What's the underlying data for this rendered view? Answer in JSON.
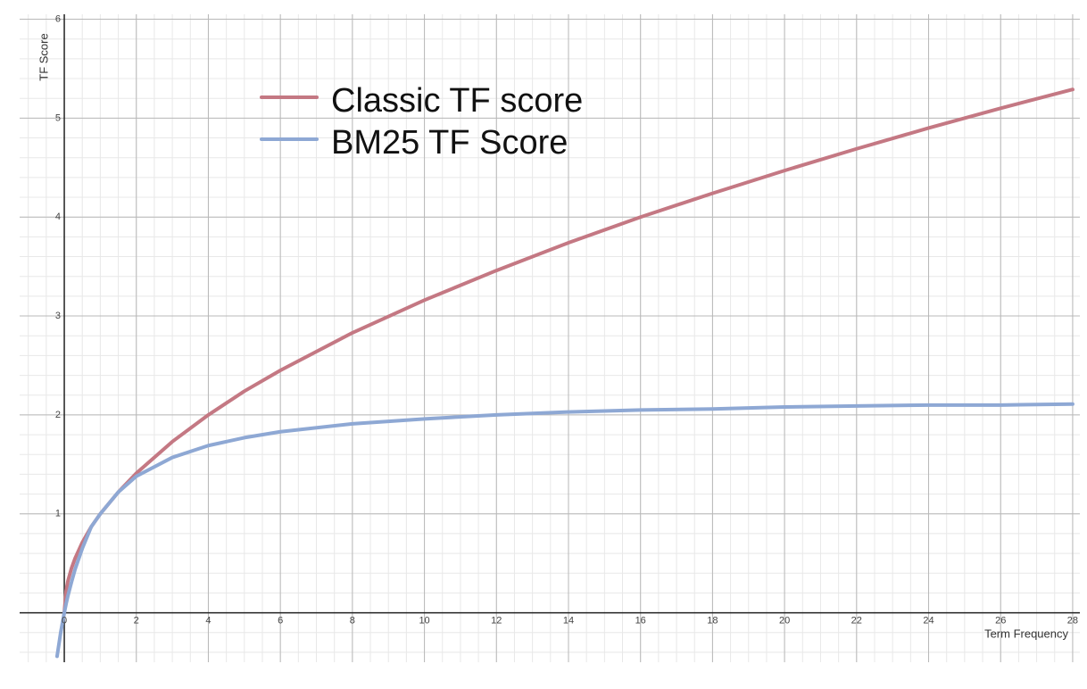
{
  "chart_data": {
    "type": "line",
    "x_label": "Term Frequency",
    "y_label": "TF Score",
    "x": [
      -0.2,
      -0.1,
      0,
      0.05,
      0.1,
      0.2,
      0.3,
      0.5,
      0.75,
      1,
      1.5,
      2,
      3,
      4,
      5,
      6,
      8,
      10,
      12,
      14,
      16,
      18,
      20,
      22,
      24,
      26,
      28
    ],
    "series": [
      {
        "name": "Classic TF score",
        "color": "#c47883",
        "values": [
          null,
          null,
          0,
          0.22,
          0.32,
          0.45,
          0.55,
          0.71,
          0.87,
          1,
          1.22,
          1.41,
          1.73,
          2,
          2.24,
          2.45,
          2.83,
          3.16,
          3.46,
          3.74,
          4,
          4.24,
          4.47,
          4.69,
          4.9,
          5.1,
          5.29
        ]
      },
      {
        "name": "BM25 TF Score",
        "color": "#8ea8d4",
        "values": [
          -0.44,
          -0.2,
          0,
          0.09,
          0.17,
          0.31,
          0.44,
          0.65,
          0.87,
          1,
          1.22,
          1.38,
          1.57,
          1.69,
          1.77,
          1.83,
          1.91,
          1.96,
          2,
          2.03,
          2.05,
          2.06,
          2.08,
          2.09,
          2.1,
          2.1,
          2.11
        ]
      }
    ],
    "xlim": [
      -1.24,
      28.2
    ],
    "ylim": [
      -0.5,
      6.05
    ],
    "xticks": [
      0,
      2,
      4,
      6,
      8,
      10,
      12,
      14,
      16,
      18,
      20,
      22,
      24,
      26,
      28
    ],
    "yticks": [
      1,
      2,
      3,
      4,
      5,
      6
    ],
    "grid": true,
    "legend": "upper-left"
  }
}
